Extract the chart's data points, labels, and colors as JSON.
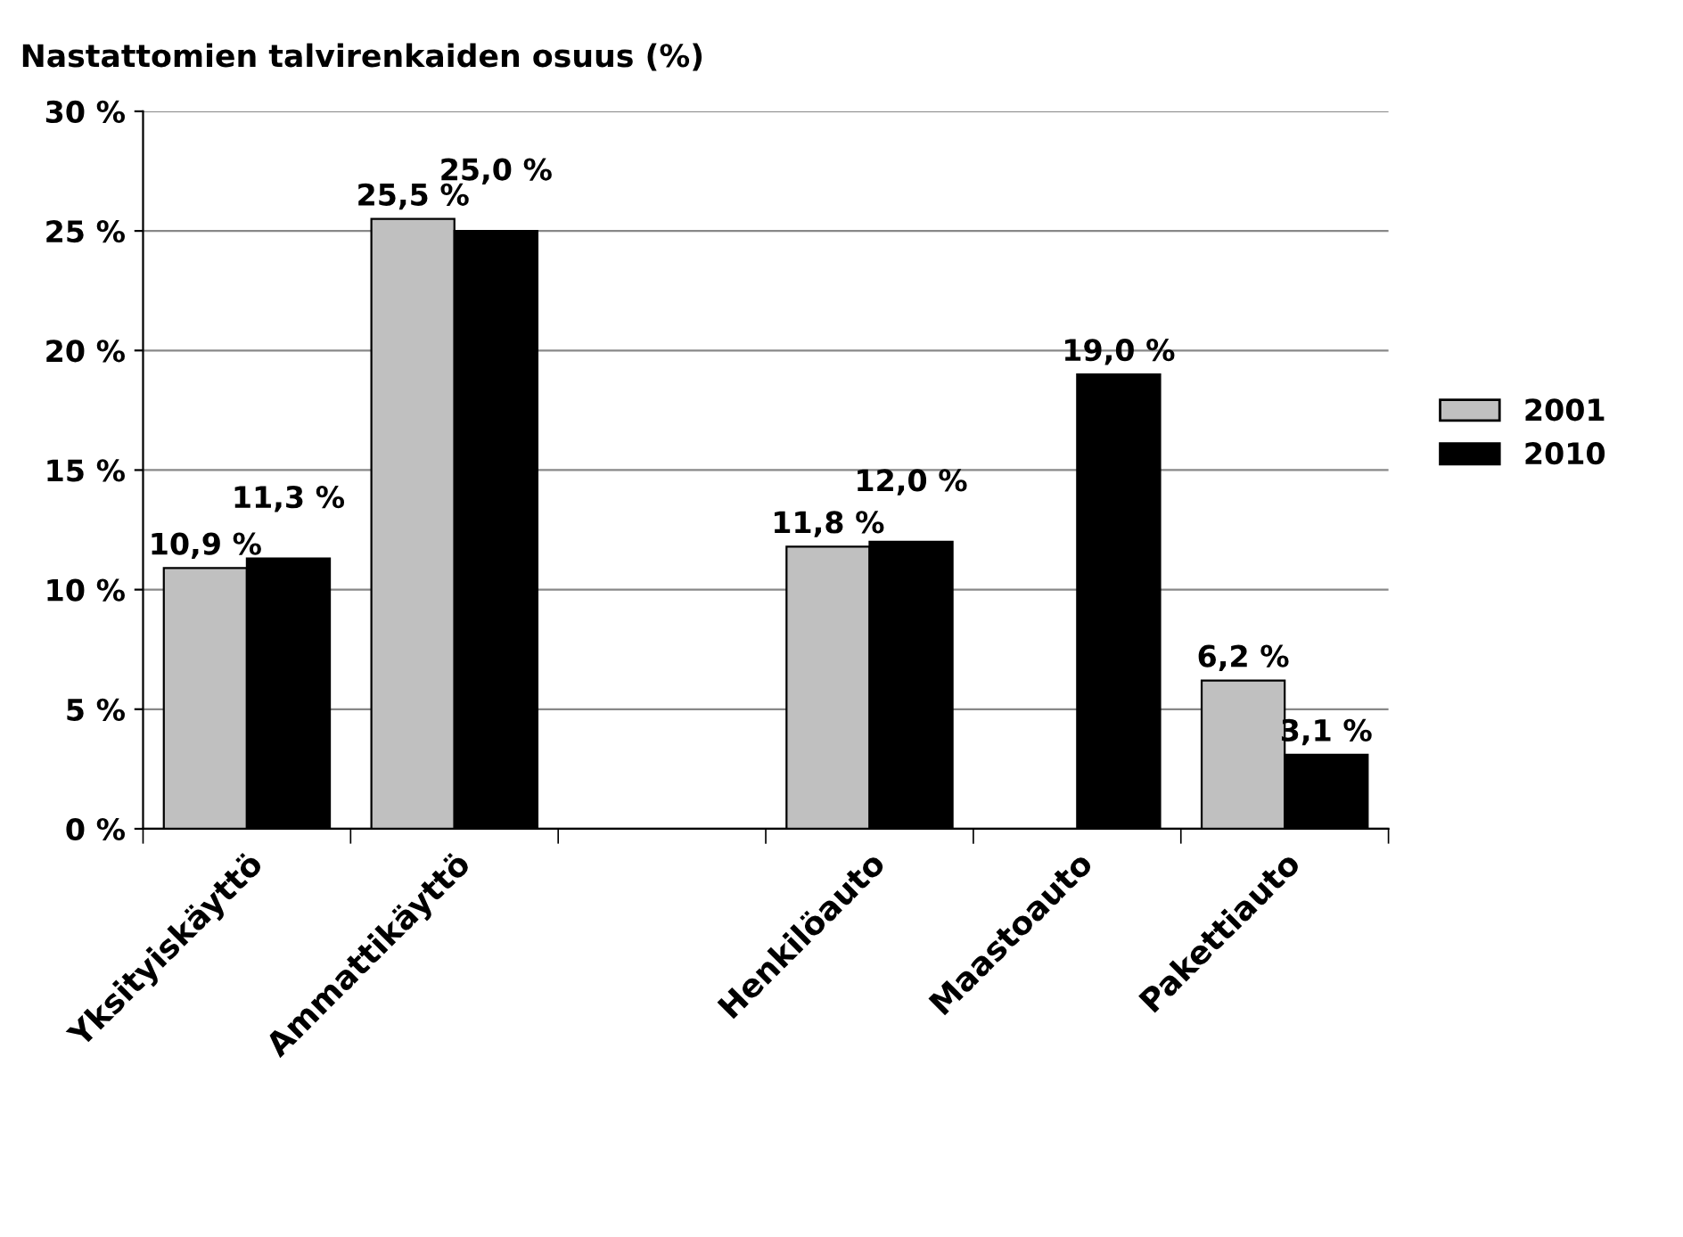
{
  "chart_data": {
    "type": "bar",
    "title": "Nastattomien talvirenkaiden osuus (%)",
    "categories": [
      "Yksityiskäyttö",
      "Ammattikäyttö",
      null,
      "Henkilöauto",
      "Maastoauto",
      "Pakettiauto"
    ],
    "series": [
      {
        "name": "2001",
        "color": "#c0c0c0",
        "values": [
          10.9,
          25.5,
          null,
          11.8,
          null,
          6.2
        ],
        "value_labels": [
          "10,9 %",
          "25,5 %",
          null,
          "11,8 %",
          null,
          "6,2 %"
        ]
      },
      {
        "name": "2010",
        "color": "#000000",
        "values": [
          11.3,
          25.0,
          null,
          12.0,
          19.0,
          3.1
        ],
        "value_labels": [
          "11,3 %",
          "25,0 %",
          null,
          "12,0 %",
          "19,0 %",
          "3,1 %"
        ]
      }
    ],
    "ylim": [
      0,
      30
    ],
    "yticks": [
      {
        "value": 0,
        "label": "0 %"
      },
      {
        "value": 5,
        "label": "5 %"
      },
      {
        "value": 10,
        "label": "10 %"
      },
      {
        "value": 15,
        "label": "15 %"
      },
      {
        "value": 20,
        "label": "20 %"
      },
      {
        "value": 25,
        "label": "25 %"
      },
      {
        "value": 30,
        "label": "30 %"
      }
    ],
    "grid": "y",
    "legend": "right"
  }
}
